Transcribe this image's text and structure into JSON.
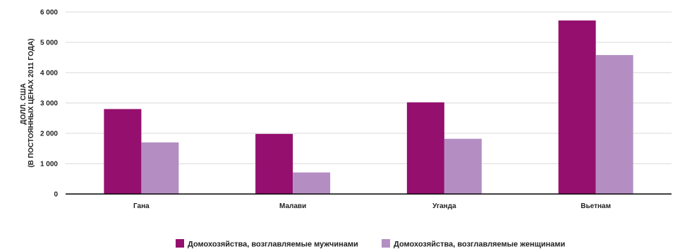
{
  "chart_data": {
    "type": "bar",
    "categories": [
      "Гана",
      "Малави",
      "Уганда",
      "Вьетнам"
    ],
    "series": [
      {
        "name": "Домохозяйства, возглавляемые мужчинами",
        "values": [
          2800,
          1980,
          3020,
          5720
        ],
        "color": "#950f6e"
      },
      {
        "name": "Домохозяйства, возглавляемые женщинами",
        "values": [
          1700,
          710,
          1820,
          4580
        ],
        "color": "#b48ec3"
      }
    ],
    "ylabel_lines": [
      "ДОЛЛ. США",
      "(В ПОСТОЯННЫХ ЦЕНАХ 2011 ГОДА)"
    ],
    "yticks": [
      0,
      1000,
      2000,
      3000,
      4000,
      5000,
      6000
    ],
    "ytick_labels": [
      "0",
      "1 000",
      "2 000",
      "3 000",
      "4 000",
      "5 000",
      "6 000"
    ],
    "ylim": [
      0,
      6000
    ],
    "grid": true,
    "legend_position": "bottom-center"
  }
}
